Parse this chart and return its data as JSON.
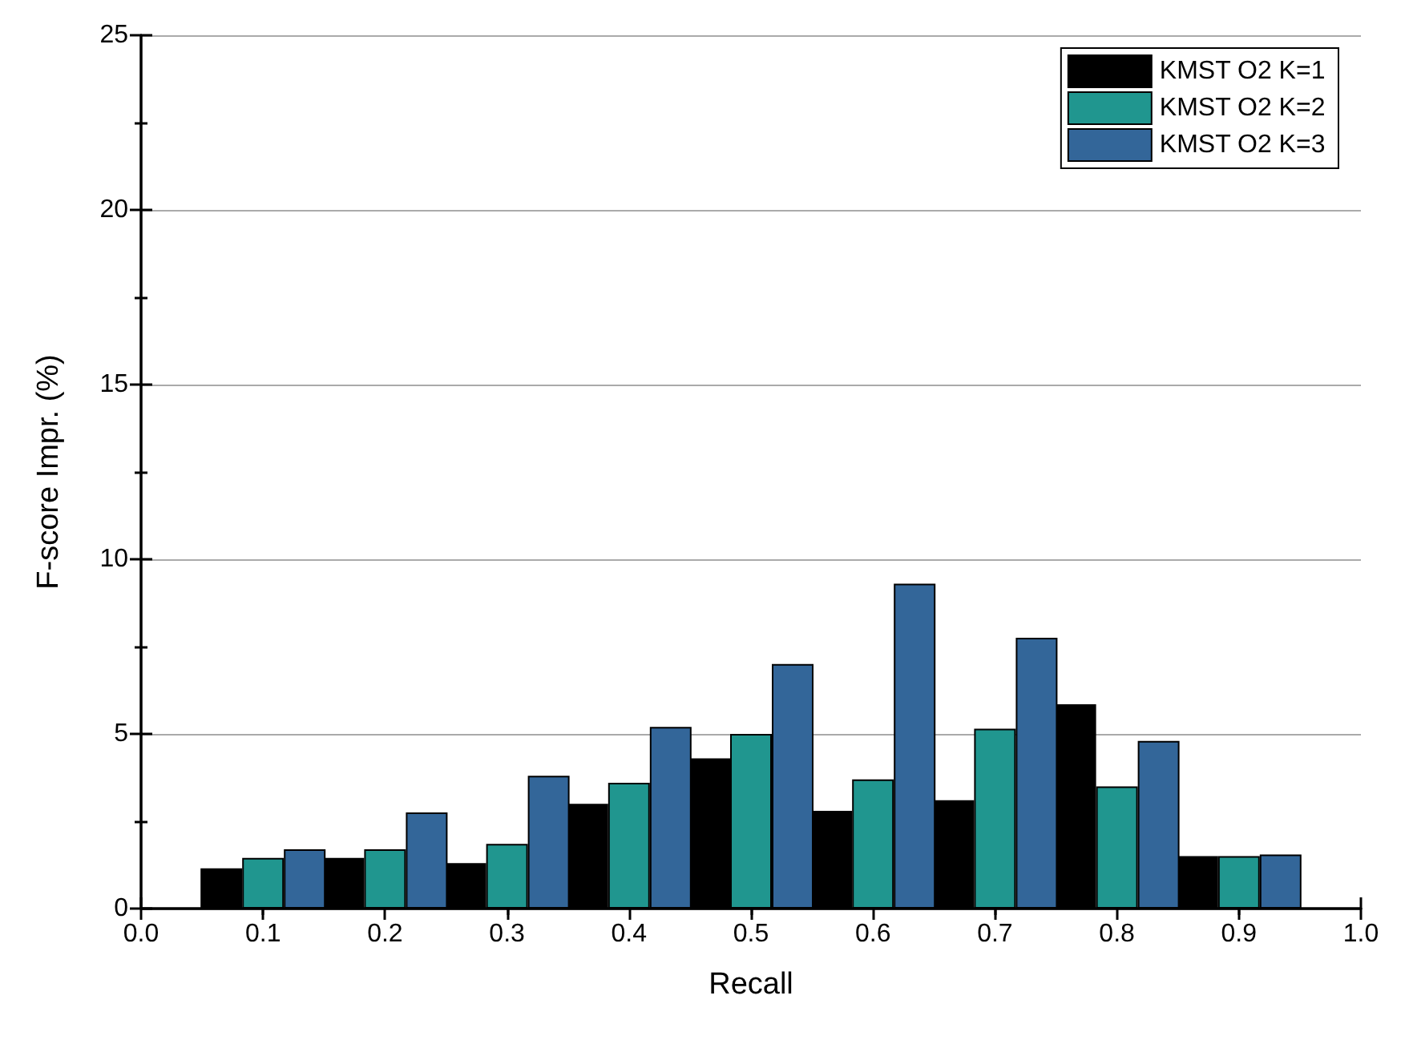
{
  "chart_data": {
    "type": "bar",
    "xlabel": "Recall",
    "ylabel": "F-score Impr. (%)",
    "x": [
      0.1,
      0.2,
      0.3,
      0.4,
      0.5,
      0.6,
      0.7,
      0.8,
      0.9
    ],
    "series": [
      {
        "name": "KMST O2 K=1",
        "color": "#000000",
        "values": [
          1.15,
          1.45,
          1.3,
          3.0,
          4.3,
          2.8,
          3.1,
          5.85,
          1.5
        ]
      },
      {
        "name": "KMST O2 K=2",
        "color": "#20968f",
        "values": [
          1.45,
          1.7,
          1.85,
          3.6,
          5.0,
          3.7,
          5.15,
          3.5,
          1.5
        ]
      },
      {
        "name": "KMST O2 K=3",
        "color": "#336699",
        "values": [
          1.7,
          2.75,
          3.8,
          5.2,
          7.0,
          9.3,
          7.75,
          4.8,
          1.55
        ]
      }
    ],
    "xlim": [
      0.0,
      1.0
    ],
    "xticks": [
      {
        "value": 0,
        "label": "0.0"
      },
      0.1,
      0.2,
      0.3,
      0.4,
      0.5,
      0.6,
      0.7,
      0.8,
      0.9,
      {
        "value": 1,
        "label": "1.0"
      }
    ],
    "ylim": [
      0,
      25
    ],
    "yticks": [
      0,
      5,
      10,
      15,
      20,
      25
    ],
    "grid": "y",
    "legend": "top right"
  }
}
